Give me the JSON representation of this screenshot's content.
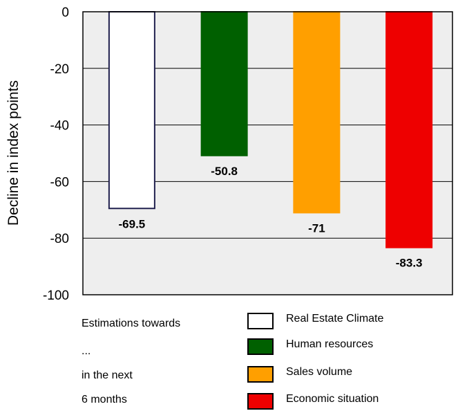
{
  "chart_data": {
    "type": "bar",
    "ylabel": "Decline in index points",
    "ylim": [
      -100,
      0
    ],
    "yticks": [
      0,
      -20,
      -40,
      -60,
      -80,
      -100
    ],
    "yticklabels": [
      "0",
      "-20",
      "-40",
      "-60",
      "-80",
      "-100"
    ],
    "grid": true,
    "series": [
      {
        "name": "Real Estate Climate",
        "value": -69.5,
        "label": "-69.5",
        "color": "#ffffff",
        "edge": "#1f1f4d"
      },
      {
        "name": "Human resources",
        "value": -50.8,
        "label": "-50.8",
        "color": "#006000",
        "edge": "#006000"
      },
      {
        "name": "Sales volume",
        "value": -71,
        "label": "-71",
        "color": "#ff9f00",
        "edge": "#ff9f00"
      },
      {
        "name": "Economic situation",
        "value": -83.3,
        "label": "-83.3",
        "color": "#ee0000",
        "edge": "#ee0000"
      }
    ],
    "plot_background": "#eeeeee",
    "legend_position": "bottom-right"
  },
  "notes": [
    "Estimations towards",
    "...",
    "in the next",
    "6 months"
  ]
}
